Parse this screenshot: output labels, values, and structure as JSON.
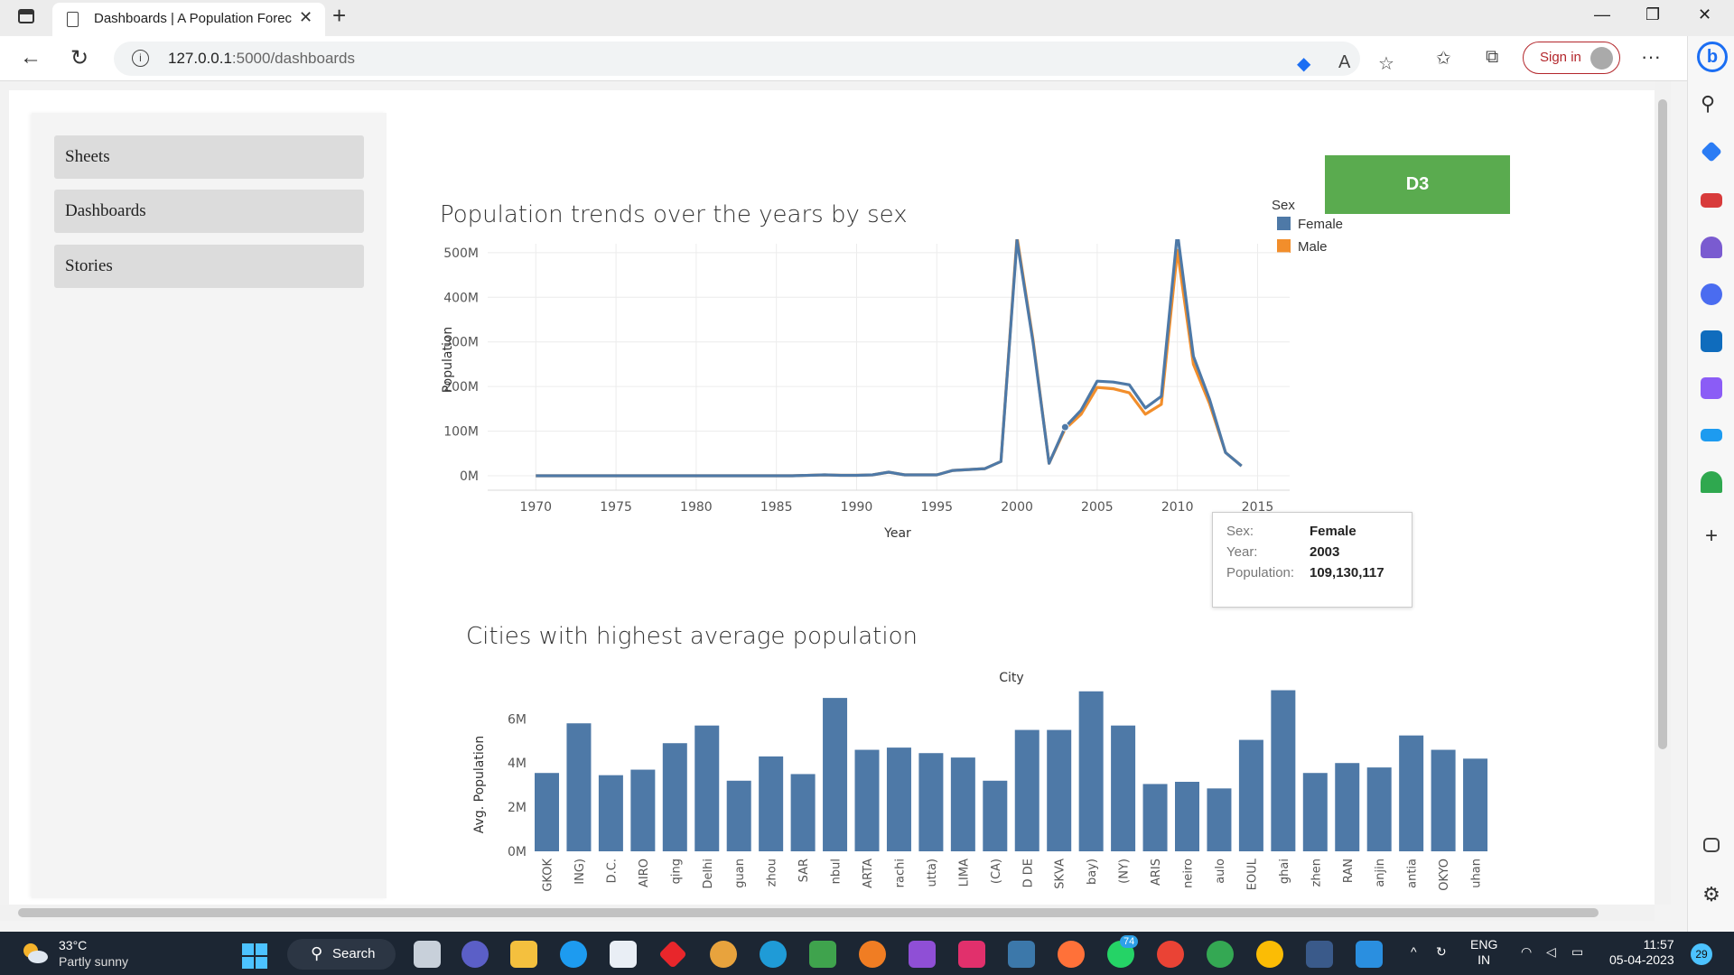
{
  "browser": {
    "tab_title": "Dashboards | A Population Forec",
    "url_host": "127.0.0.1",
    "url_path": ":5000/dashboards",
    "sign_in": "Sign in"
  },
  "sidebar": {
    "items": [
      {
        "label": "Sheets"
      },
      {
        "label": "Dashboards"
      },
      {
        "label": "Stories"
      }
    ]
  },
  "content": {
    "d3_button": "D3"
  },
  "chart_data": [
    {
      "type": "line",
      "title": "Population trends over the years by sex",
      "xlabel": "Year",
      "ylabel": "Population",
      "xlim": [
        1967,
        2017
      ],
      "ylim": [
        0,
        520
      ],
      "x_ticks": [
        "1970",
        "1975",
        "1980",
        "1985",
        "1990",
        "1995",
        "2000",
        "2005",
        "2010",
        "2015"
      ],
      "y_ticks": [
        "0M",
        "100M",
        "200M",
        "300M",
        "400M",
        "500M"
      ],
      "legend_title": "Sex",
      "legend_position": "top-right",
      "colors": {
        "Female": "#4e79a7",
        "Male": "#f28e2b"
      },
      "series": [
        {
          "name": "Female",
          "x": [
            1970,
            1972,
            1974,
            1976,
            1978,
            1980,
            1982,
            1984,
            1986,
            1988,
            1989,
            1990,
            1991,
            1992,
            1993,
            1994,
            1995,
            1996,
            1997,
            1998,
            1999,
            2000,
            2001,
            2002,
            2003,
            2004,
            2005,
            2006,
            2007,
            2008,
            2009,
            2010,
            2011,
            2012,
            2013,
            2014
          ],
          "y": [
            0,
            0,
            0,
            0,
            0,
            0,
            0,
            0,
            0,
            2,
            1,
            1,
            2,
            8,
            2,
            2,
            2,
            12,
            14,
            16,
            32,
            528,
            300,
            28,
            109,
            147,
            212,
            210,
            204,
            152,
            178,
            545,
            268,
            172,
            52,
            22
          ]
        },
        {
          "name": "Male",
          "x": [
            1970,
            1972,
            1974,
            1976,
            1978,
            1980,
            1982,
            1984,
            1986,
            1988,
            1989,
            1990,
            1991,
            1992,
            1993,
            1994,
            1995,
            1996,
            1997,
            1998,
            1999,
            2000,
            2001,
            2002,
            2003,
            2004,
            2005,
            2006,
            2007,
            2008,
            2009,
            2010,
            2011,
            2012,
            2013,
            2014
          ],
          "y": [
            0,
            0,
            0,
            0,
            0,
            0,
            0,
            0,
            0,
            2,
            1,
            1,
            2,
            8,
            2,
            2,
            2,
            12,
            14,
            16,
            32,
            535,
            305,
            28,
            105,
            138,
            198,
            195,
            186,
            138,
            160,
            505,
            250,
            162,
            52,
            22
          ]
        }
      ],
      "tooltip": {
        "rows": [
          {
            "key": "Sex:",
            "value": "Female"
          },
          {
            "key": "Year:",
            "value": "2003"
          },
          {
            "key": "Population:",
            "value": "109,130,117"
          }
        ]
      }
    },
    {
      "type": "bar",
      "title": "Cities with highest average population",
      "xlabel": "City",
      "ylabel": "Avg. Population",
      "ylim": [
        0,
        7.2
      ],
      "y_ticks": [
        "0M",
        "2M",
        "4M",
        "6M"
      ],
      "color": "#4e79a7",
      "categories": [
        "GKOK",
        "ING)",
        "D.C.",
        "AIRO",
        "qing",
        "Delhi",
        "guan",
        "zhou",
        "SAR",
        "nbul",
        "ARTA",
        "rachi",
        "utta)",
        "LIMA",
        "(CA)",
        "D DE",
        "SKVA",
        "bay)",
        "(NY)",
        "ARIS",
        "neiro",
        "aulo",
        "EOUL",
        "ghai",
        "zhen",
        "RAN",
        "anjin",
        "antia",
        "OKYO",
        "uhan"
      ],
      "values": [
        3.55,
        5.8,
        3.45,
        3.7,
        4.9,
        5.7,
        3.2,
        4.3,
        3.5,
        6.95,
        4.6,
        4.7,
        4.45,
        4.25,
        3.2,
        5.5,
        5.5,
        7.25,
        5.7,
        3.05,
        3.15,
        2.85,
        5.05,
        7.3,
        3.55,
        4.0,
        3.8,
        5.25,
        4.6,
        4.2
      ]
    }
  ],
  "taskbar": {
    "temperature": "33°C",
    "weather": "Partly sunny",
    "search": "Search",
    "lang_top": "ENG",
    "lang_bottom": "IN",
    "time": "11:57",
    "date": "05-04-2023",
    "notification_count": "29",
    "whatsapp_badge": "74"
  }
}
